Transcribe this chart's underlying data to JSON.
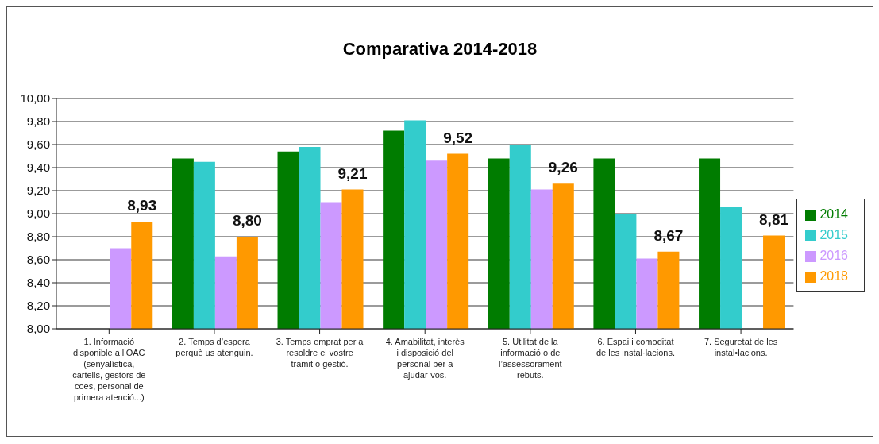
{
  "chart_data": {
    "type": "bar",
    "title": "Comparativa 2014-2018",
    "categories": [
      "1. Informació disponible a l’OAC (senyalística, cartells, gestors de coes, personal de primera atenció...)",
      "2. Temps d’espera perquè us atenguin.",
      "3. Temps emprat per a resoldre el vostre tràmit o gestió.",
      "4. Amabilitat, interès i disposició del personal per a ajudar-vos.",
      "5. Utilitat de la informació o de l’assessorament rebuts.",
      "6. Espai i comoditat de les instal·lacions.",
      "7. Seguretat de les instal•lacions."
    ],
    "series": [
      {
        "name": "2014",
        "color": "#007c00",
        "values": [
          null,
          9.48,
          9.54,
          9.72,
          9.48,
          9.48,
          9.48
        ]
      },
      {
        "name": "2015",
        "color": "#33cccc",
        "values": [
          null,
          9.45,
          9.58,
          9.81,
          9.6,
          9.0,
          9.06
        ]
      },
      {
        "name": "2016",
        "color": "#cc99ff",
        "values": [
          8.7,
          8.63,
          9.1,
          9.46,
          9.21,
          8.61,
          null
        ]
      },
      {
        "name": "2018",
        "color": "#ff9900",
        "values": [
          8.93,
          8.8,
          9.21,
          9.52,
          9.26,
          8.67,
          8.81
        ],
        "value_labels": [
          "8,93",
          "8,80",
          "9,21",
          "9,52",
          "9,26",
          "8,67",
          "8,81"
        ]
      }
    ],
    "ylim": [
      8,
      10
    ],
    "yticks": [
      {
        "value": 8,
        "label": "8,00"
      },
      {
        "value": 8.2,
        "label": "8,20"
      },
      {
        "value": 8.4,
        "label": "8,40"
      },
      {
        "value": 8.6,
        "label": "8,60"
      },
      {
        "value": 8.8,
        "label": "8,80"
      },
      {
        "value": 9,
        "label": "9,00"
      },
      {
        "value": 9.2,
        "label": "9,20"
      },
      {
        "value": 9.4,
        "label": "9,40"
      },
      {
        "value": 9.6,
        "label": "9,60"
      },
      {
        "value": 9.8,
        "label": "9,80"
      },
      {
        "value": 10,
        "label": "10,00"
      }
    ],
    "grid": "y",
    "legend": "right"
  }
}
